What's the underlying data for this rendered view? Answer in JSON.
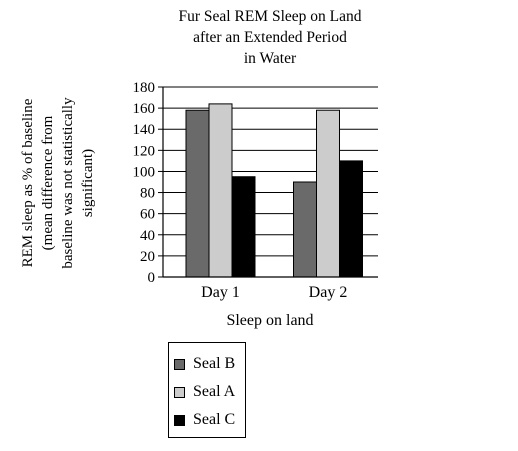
{
  "chart_data": {
    "type": "bar",
    "title_lines": [
      "Fur Seal REM Sleep on Land",
      "after an Extended Period",
      "in Water"
    ],
    "ylabel_lines": [
      "REM sleep as % of baseline",
      "(mean difference from",
      "baseline was not statistically",
      "significant)"
    ],
    "xlabel": "Sleep on land",
    "categories": [
      "Day 1",
      "Day 2"
    ],
    "yticks": [
      0,
      20,
      40,
      60,
      80,
      100,
      120,
      140,
      160,
      180
    ],
    "ylim": [
      0,
      180
    ],
    "grid": true,
    "legend_position": "bottom",
    "series": [
      {
        "name": "Seal B",
        "color": "#6a6a6a",
        "values": [
          158,
          90
        ]
      },
      {
        "name": "Seal A",
        "color": "#cccccc",
        "values": [
          164,
          158
        ]
      },
      {
        "name": "Seal C",
        "color": "#000000",
        "values": [
          95,
          110
        ]
      }
    ]
  }
}
